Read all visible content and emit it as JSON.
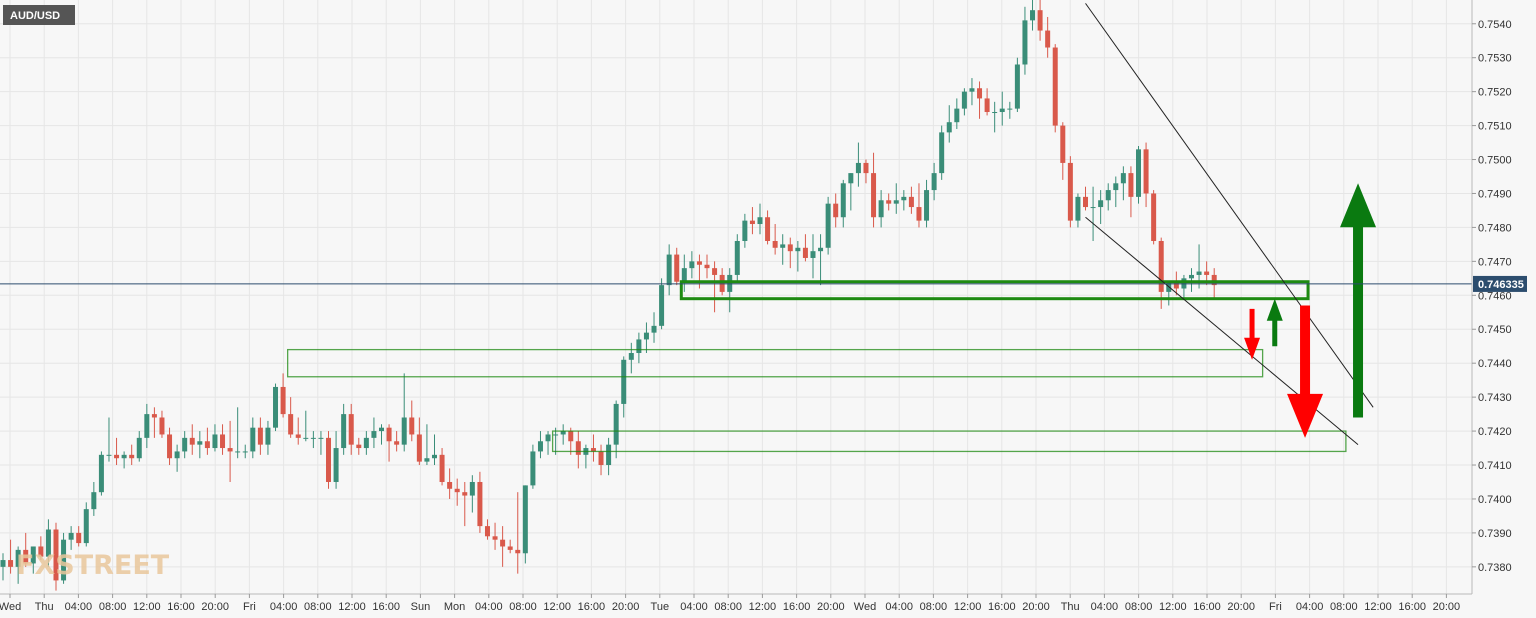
{
  "chart_data": {
    "type": "candlestick",
    "symbol": "AUD/USD",
    "watermark": "FXSTREET",
    "current_price": 0.746335,
    "current_price_label": "0.746335",
    "ylim": [
      0.7372,
      0.7547
    ],
    "y_ticks": [
      "0.7380",
      "0.7390",
      "0.7400",
      "0.7410",
      "0.7420",
      "0.7430",
      "0.7440",
      "0.7450",
      "0.7460",
      "0.7470",
      "0.7480",
      "0.7490",
      "0.7500",
      "0.7510",
      "0.7520",
      "0.7530",
      "0.7540"
    ],
    "grid": true,
    "x_tick_labels": [
      "Wed",
      "Thu",
      "04:00",
      "08:00",
      "12:00",
      "16:00",
      "20:00",
      "Fri",
      "04:00",
      "08:00",
      "12:00",
      "16:00",
      "Sun",
      "Mon",
      "04:00",
      "08:00",
      "12:00",
      "16:00",
      "20:00",
      "Tue",
      "04:00",
      "08:00",
      "12:00",
      "16:00",
      "20:00",
      "Wed",
      "04:00",
      "08:00",
      "12:00",
      "16:00",
      "20:00",
      "Thu",
      "04:00",
      "08:00",
      "12:00",
      "16:00",
      "20:00",
      "Fri",
      "04:00",
      "08:00",
      "12:00",
      "16:00",
      "20:00"
    ],
    "candles": [
      [
        0.738,
        0.7384,
        0.7376,
        0.7382
      ],
      [
        0.7382,
        0.7388,
        0.7378,
        0.738
      ],
      [
        0.738,
        0.7386,
        0.7375,
        0.7385
      ],
      [
        0.7385,
        0.739,
        0.738,
        0.7381
      ],
      [
        0.7381,
        0.7386,
        0.7378,
        0.7386
      ],
      [
        0.7386,
        0.7389,
        0.7382,
        0.7383
      ],
      [
        0.7383,
        0.7394,
        0.738,
        0.7391
      ],
      [
        0.7391,
        0.7393,
        0.7373,
        0.7376
      ],
      [
        0.7376,
        0.739,
        0.7375,
        0.7388
      ],
      [
        0.7388,
        0.7392,
        0.7385,
        0.739
      ],
      [
        0.739,
        0.7392,
        0.7386,
        0.7387
      ],
      [
        0.7387,
        0.7399,
        0.7386,
        0.7397
      ],
      [
        0.7397,
        0.7405,
        0.7395,
        0.7402
      ],
      [
        0.7402,
        0.7414,
        0.7401,
        0.7413
      ],
      [
        0.7413,
        0.7424,
        0.7411,
        0.7413
      ],
      [
        0.7413,
        0.7418,
        0.741,
        0.7412
      ],
      [
        0.7412,
        0.7414,
        0.7409,
        0.7413
      ],
      [
        0.7413,
        0.7416,
        0.741,
        0.7412
      ],
      [
        0.7412,
        0.742,
        0.7411,
        0.7418
      ],
      [
        0.7418,
        0.7428,
        0.7415,
        0.7425
      ],
      [
        0.7425,
        0.7427,
        0.7418,
        0.7424
      ],
      [
        0.7424,
        0.7426,
        0.7418,
        0.7419
      ],
      [
        0.7419,
        0.7421,
        0.741,
        0.7412
      ],
      [
        0.7412,
        0.7416,
        0.7408,
        0.7414
      ],
      [
        0.7414,
        0.742,
        0.7412,
        0.7418
      ],
      [
        0.7418,
        0.7422,
        0.7413,
        0.7416
      ],
      [
        0.7416,
        0.742,
        0.7412,
        0.7417
      ],
      [
        0.7417,
        0.7421,
        0.7413,
        0.7415
      ],
      [
        0.7415,
        0.7422,
        0.7414,
        0.7419
      ],
      [
        0.7419,
        0.7422,
        0.7413,
        0.7415
      ],
      [
        0.7415,
        0.7423,
        0.7405,
        0.7414
      ],
      [
        0.7414,
        0.7427,
        0.7412,
        0.7414
      ],
      [
        0.7414,
        0.7416,
        0.7412,
        0.7414
      ],
      [
        0.7414,
        0.7424,
        0.7412,
        0.7421
      ],
      [
        0.7421,
        0.7424,
        0.7413,
        0.7416
      ],
      [
        0.7416,
        0.7423,
        0.7413,
        0.7421
      ],
      [
        0.7421,
        0.7434,
        0.742,
        0.7433
      ],
      [
        0.7433,
        0.7437,
        0.7424,
        0.7425
      ],
      [
        0.7425,
        0.743,
        0.7418,
        0.7419
      ],
      [
        0.7419,
        0.7424,
        0.7416,
        0.7418
      ],
      [
        0.7418,
        0.7426,
        0.7417,
        0.7418
      ],
      [
        0.7418,
        0.742,
        0.7415,
        0.7418
      ],
      [
        0.7418,
        0.742,
        0.7413,
        0.7418
      ],
      [
        0.7418,
        0.742,
        0.7403,
        0.7405
      ],
      [
        0.7405,
        0.742,
        0.7403,
        0.7415
      ],
      [
        0.7415,
        0.7428,
        0.7413,
        0.7425
      ],
      [
        0.7425,
        0.7428,
        0.7413,
        0.7416
      ],
      [
        0.7416,
        0.7418,
        0.7413,
        0.7415
      ],
      [
        0.7415,
        0.742,
        0.7413,
        0.7418
      ],
      [
        0.7418,
        0.7424,
        0.7415,
        0.742
      ],
      [
        0.742,
        0.7422,
        0.7416,
        0.7421
      ],
      [
        0.7421,
        0.7422,
        0.7411,
        0.7417
      ],
      [
        0.7417,
        0.742,
        0.7414,
        0.7416
      ],
      [
        0.7416,
        0.7437,
        0.7414,
        0.7424
      ],
      [
        0.7424,
        0.7429,
        0.7417,
        0.7419
      ],
      [
        0.7419,
        0.7424,
        0.741,
        0.7411
      ],
      [
        0.7411,
        0.7422,
        0.741,
        0.7412
      ],
      [
        0.7412,
        0.7419,
        0.741,
        0.7413
      ],
      [
        0.7413,
        0.7415,
        0.7404,
        0.7405
      ],
      [
        0.7405,
        0.7409,
        0.74,
        0.7403
      ],
      [
        0.7403,
        0.7406,
        0.7398,
        0.7402
      ],
      [
        0.7402,
        0.7405,
        0.7392,
        0.7401
      ],
      [
        0.7401,
        0.7407,
        0.7396,
        0.7405
      ],
      [
        0.7405,
        0.7408,
        0.739,
        0.7392
      ],
      [
        0.7392,
        0.7394,
        0.7388,
        0.7389
      ],
      [
        0.7389,
        0.7393,
        0.7385,
        0.7388
      ],
      [
        0.7388,
        0.7392,
        0.738,
        0.7386
      ],
      [
        0.7386,
        0.7388,
        0.7384,
        0.7385
      ],
      [
        0.7385,
        0.7402,
        0.7378,
        0.7384
      ],
      [
        0.7384,
        0.7404,
        0.7381,
        0.7404
      ],
      [
        0.7404,
        0.7416,
        0.7403,
        0.7414
      ],
      [
        0.7414,
        0.742,
        0.7412,
        0.7417
      ],
      [
        0.7417,
        0.742,
        0.7413,
        0.7419
      ],
      [
        0.7419,
        0.7421,
        0.7413,
        0.7419
      ],
      [
        0.7419,
        0.7422,
        0.7416,
        0.742
      ],
      [
        0.742,
        0.7421,
        0.7413,
        0.7417
      ],
      [
        0.7417,
        0.742,
        0.7409,
        0.7413
      ],
      [
        0.7413,
        0.7416,
        0.7409,
        0.7415
      ],
      [
        0.7415,
        0.7419,
        0.7411,
        0.7414
      ],
      [
        0.7414,
        0.7416,
        0.7407,
        0.741
      ],
      [
        0.741,
        0.7418,
        0.7407,
        0.7416
      ],
      [
        0.7416,
        0.7429,
        0.7412,
        0.7428
      ],
      [
        0.7428,
        0.7442,
        0.7424,
        0.7441
      ],
      [
        0.7441,
        0.7446,
        0.7437,
        0.7443
      ],
      [
        0.7443,
        0.7449,
        0.744,
        0.7447
      ],
      [
        0.7447,
        0.7452,
        0.7443,
        0.7449
      ],
      [
        0.7449,
        0.7455,
        0.7446,
        0.7451
      ],
      [
        0.7451,
        0.7465,
        0.745,
        0.7463
      ],
      [
        0.7463,
        0.7475,
        0.746,
        0.7472
      ],
      [
        0.7472,
        0.7474,
        0.7463,
        0.7464
      ],
      [
        0.7464,
        0.7472,
        0.7461,
        0.7468
      ],
      [
        0.7468,
        0.7473,
        0.7465,
        0.747
      ],
      [
        0.747,
        0.7472,
        0.7462,
        0.7469
      ],
      [
        0.7469,
        0.7472,
        0.7465,
        0.7468
      ],
      [
        0.7468,
        0.747,
        0.7455,
        0.7466
      ],
      [
        0.7466,
        0.7468,
        0.746,
        0.7461
      ],
      [
        0.7461,
        0.7468,
        0.7455,
        0.7466
      ],
      [
        0.7466,
        0.7478,
        0.7464,
        0.7476
      ],
      [
        0.7476,
        0.7484,
        0.7474,
        0.7482
      ],
      [
        0.7482,
        0.7486,
        0.7478,
        0.7481
      ],
      [
        0.7481,
        0.7487,
        0.7478,
        0.7483
      ],
      [
        0.7483,
        0.7485,
        0.7475,
        0.7476
      ],
      [
        0.7476,
        0.7481,
        0.7472,
        0.7474
      ],
      [
        0.7474,
        0.7478,
        0.7469,
        0.7475
      ],
      [
        0.7475,
        0.7477,
        0.7468,
        0.7473
      ],
      [
        0.7473,
        0.7476,
        0.7467,
        0.7474
      ],
      [
        0.7474,
        0.7478,
        0.747,
        0.7471
      ],
      [
        0.7471,
        0.7478,
        0.7465,
        0.7473
      ],
      [
        0.7473,
        0.7478,
        0.7463,
        0.7474
      ],
      [
        0.7474,
        0.7489,
        0.7472,
        0.7487
      ],
      [
        0.7487,
        0.749,
        0.748,
        0.7483
      ],
      [
        0.7483,
        0.7494,
        0.748,
        0.7493
      ],
      [
        0.7493,
        0.7496,
        0.7485,
        0.7496
      ],
      [
        0.7496,
        0.7505,
        0.7492,
        0.7499
      ],
      [
        0.7499,
        0.75,
        0.7493,
        0.7496
      ],
      [
        0.7496,
        0.7502,
        0.748,
        0.7483
      ],
      [
        0.7483,
        0.7491,
        0.748,
        0.7488
      ],
      [
        0.7488,
        0.749,
        0.7485,
        0.7487
      ],
      [
        0.7487,
        0.7493,
        0.7484,
        0.7488
      ],
      [
        0.7488,
        0.7491,
        0.7485,
        0.7489
      ],
      [
        0.7489,
        0.7492,
        0.7484,
        0.7486
      ],
      [
        0.7486,
        0.7493,
        0.748,
        0.7482
      ],
      [
        0.7482,
        0.7494,
        0.748,
        0.7491
      ],
      [
        0.7491,
        0.7499,
        0.7488,
        0.7496
      ],
      [
        0.7496,
        0.751,
        0.7494,
        0.7508
      ],
      [
        0.7508,
        0.7516,
        0.7505,
        0.7511
      ],
      [
        0.7511,
        0.7518,
        0.7509,
        0.7515
      ],
      [
        0.7515,
        0.7521,
        0.7513,
        0.752
      ],
      [
        0.752,
        0.7524,
        0.7516,
        0.7521
      ],
      [
        0.7521,
        0.7523,
        0.7512,
        0.7518
      ],
      [
        0.7518,
        0.7521,
        0.7513,
        0.7514
      ],
      [
        0.7514,
        0.7517,
        0.7508,
        0.7514
      ],
      [
        0.7514,
        0.752,
        0.751,
        0.7515
      ],
      [
        0.7515,
        0.7517,
        0.7512,
        0.7515
      ],
      [
        0.7515,
        0.753,
        0.7514,
        0.7528
      ],
      [
        0.7528,
        0.7545,
        0.7525,
        0.7541
      ],
      [
        0.7541,
        0.7547,
        0.7538,
        0.7544
      ],
      [
        0.7544,
        0.7547,
        0.7535,
        0.7538
      ],
      [
        0.7538,
        0.7542,
        0.753,
        0.7533
      ],
      [
        0.7533,
        0.7534,
        0.7508,
        0.751
      ],
      [
        0.751,
        0.7511,
        0.7494,
        0.7499
      ],
      [
        0.7499,
        0.7501,
        0.748,
        0.7482
      ],
      [
        0.7482,
        0.749,
        0.748,
        0.7489
      ],
      [
        0.7489,
        0.7492,
        0.7485,
        0.7486
      ],
      [
        0.7486,
        0.7492,
        0.7476,
        0.7486
      ],
      [
        0.7486,
        0.7491,
        0.7481,
        0.7488
      ],
      [
        0.7488,
        0.7493,
        0.7485,
        0.7491
      ],
      [
        0.7491,
        0.7495,
        0.7486,
        0.7493
      ],
      [
        0.7493,
        0.7498,
        0.7488,
        0.7496
      ],
      [
        0.7496,
        0.7498,
        0.7483,
        0.7489
      ],
      [
        0.7489,
        0.7504,
        0.7487,
        0.7503
      ],
      [
        0.7503,
        0.7505,
        0.7486,
        0.749
      ],
      [
        0.749,
        0.7491,
        0.7475,
        0.7476
      ],
      [
        0.7476,
        0.7477,
        0.7456,
        0.7461
      ],
      [
        0.7461,
        0.7464,
        0.7457,
        0.7464
      ],
      [
        0.7464,
        0.7467,
        0.746,
        0.7462
      ],
      [
        0.7462,
        0.7466,
        0.7459,
        0.7465
      ],
      [
        0.7465,
        0.7468,
        0.7461,
        0.7466
      ],
      [
        0.7466,
        0.7475,
        0.7462,
        0.7467
      ],
      [
        0.7467,
        0.747,
        0.7463,
        0.7466
      ],
      [
        0.7466,
        0.7468,
        0.7459,
        0.7463
      ]
    ],
    "trend_lines": [
      {
        "name": "upper",
        "points": [
          [
            143,
            0.7546
          ],
          [
            181,
            0.7427
          ]
        ]
      },
      {
        "name": "lower",
        "points": [
          [
            143,
            0.7483
          ],
          [
            179,
            0.7416
          ]
        ]
      }
    ],
    "zones": [
      {
        "name": "support-zone-1",
        "y_low": 0.7459,
        "y_high": 0.7464,
        "x_start": 90,
        "x_end": 172,
        "style": "strong"
      },
      {
        "name": "support-zone-2",
        "y_low": 0.7436,
        "y_high": 0.7444,
        "x_start": 38,
        "x_end": 166,
        "style": "light"
      },
      {
        "name": "support-zone-3",
        "y_low": 0.7414,
        "y_high": 0.742,
        "x_start": 73,
        "x_end": 177,
        "style": "light"
      }
    ],
    "arrows": [
      {
        "name": "small-down-arrow",
        "direction": "down",
        "color": "#ff0000",
        "x": 165,
        "from": 0.7456,
        "to": 0.7441,
        "size": "small"
      },
      {
        "name": "small-up-arrow",
        "direction": "up",
        "color": "#0a7a10",
        "x": 168,
        "from": 0.7445,
        "to": 0.7459,
        "size": "small"
      },
      {
        "name": "large-down-arrow",
        "direction": "down",
        "color": "#ff0000",
        "x": 172,
        "from": 0.7457,
        "to": 0.7418,
        "size": "large"
      },
      {
        "name": "large-up-arrow",
        "direction": "up",
        "color": "#0a7a10",
        "x": 179,
        "from": 0.7424,
        "to": 0.7493,
        "size": "large"
      }
    ],
    "colors": {
      "up_candle": "#3a8d78",
      "down_candle": "#d9594b",
      "grid": "#e6e6e6",
      "price_line": "#2c4d6e",
      "zone": "#1e8a12",
      "symbol_bg": "#555555"
    }
  }
}
